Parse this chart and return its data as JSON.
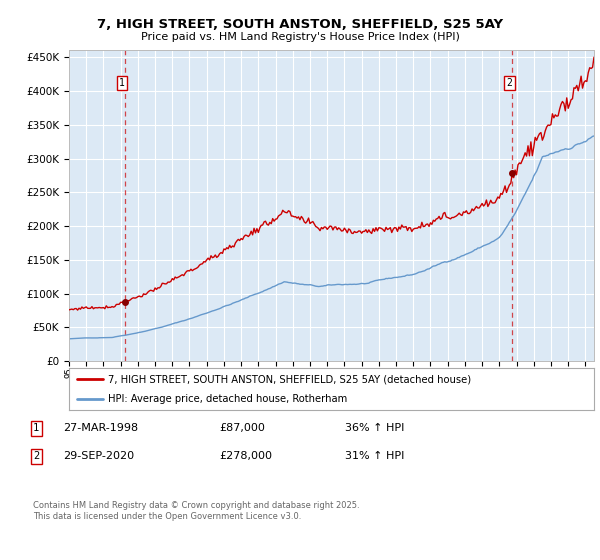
{
  "title": "7, HIGH STREET, SOUTH ANSTON, SHEFFIELD, S25 5AY",
  "subtitle": "Price paid vs. HM Land Registry's House Price Index (HPI)",
  "legend1": "7, HIGH STREET, SOUTH ANSTON, SHEFFIELD, S25 5AY (detached house)",
  "legend2": "HPI: Average price, detached house, Rotherham",
  "footnote": "Contains HM Land Registry data © Crown copyright and database right 2025.\nThis data is licensed under the Open Government Licence v3.0.",
  "marker1_date": "27-MAR-1998",
  "marker1_price": 87000,
  "marker1_hpi": "36% ↑ HPI",
  "marker2_date": "29-SEP-2020",
  "marker2_price": 278000,
  "marker2_hpi": "31% ↑ HPI",
  "marker1_x": 1998.23,
  "marker2_x": 2020.75,
  "red_color": "#cc0000",
  "blue_color": "#6699cc",
  "bg_color": "#dce9f5",
  "grid_color": "#ffffff",
  "dashed_color": "#cc0000",
  "ylim": [
    0,
    460000
  ],
  "xlim_start": 1995.0,
  "xlim_end": 2025.5
}
